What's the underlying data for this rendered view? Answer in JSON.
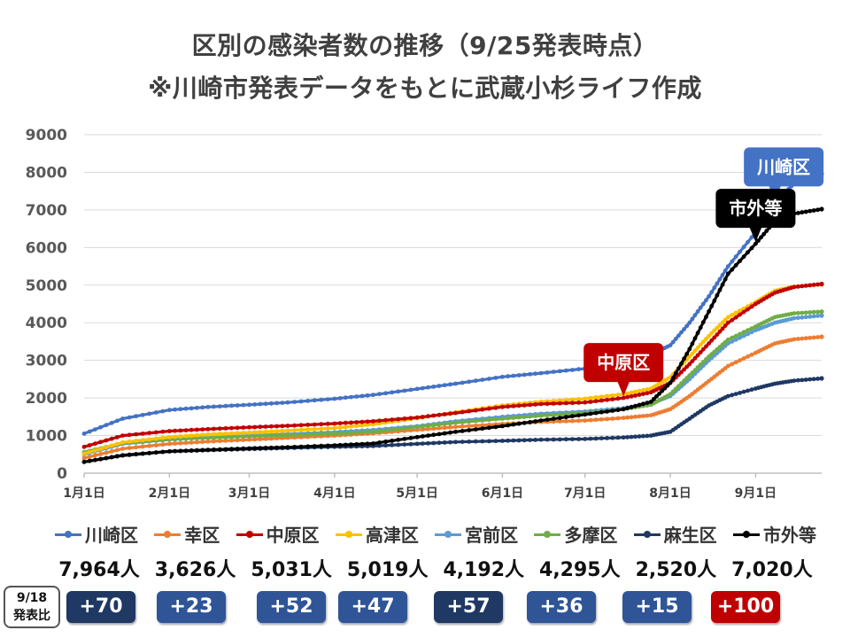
{
  "title_line1": "区別の感染者数の推移（9/25発表時点）",
  "title_line2": "※川崎市発表データをもとに武蔵小杉ライフ作成",
  "chart_data": {
    "type": "line",
    "x": [
      "1月1日",
      "1月15日",
      "2月1日",
      "2月15日",
      "3月1日",
      "3月15日",
      "4月1日",
      "4月15日",
      "5月1日",
      "5月15日",
      "6月1日",
      "6月15日",
      "7月1日",
      "7月15日",
      "7月25日",
      "8月1日",
      "8月8日",
      "8月15日",
      "8月22日",
      "9月1日",
      "9月8日",
      "9月15日",
      "9月25日"
    ],
    "x_tick_labels": [
      "1月1日",
      "2月1日",
      "3月1日",
      "4月1日",
      "5月1日",
      "6月1日",
      "7月1日",
      "8月1日",
      "9月1日"
    ],
    "ylim": [
      0,
      9000
    ],
    "y_ticks": [
      0,
      1000,
      2000,
      3000,
      4000,
      5000,
      6000,
      7000,
      8000,
      9000
    ],
    "grid": true,
    "legend_position": "bottom",
    "series": [
      {
        "name": "川崎区",
        "color": "#4472C4",
        "values": [
          1050,
          1450,
          1680,
          1760,
          1820,
          1880,
          1980,
          2080,
          2240,
          2380,
          2560,
          2660,
          2780,
          3000,
          3150,
          3400,
          4000,
          4700,
          5500,
          6400,
          7200,
          7700,
          7964
        ]
      },
      {
        "name": "幸区",
        "color": "#ED7D31",
        "values": [
          400,
          650,
          780,
          840,
          890,
          940,
          1000,
          1060,
          1150,
          1230,
          1310,
          1360,
          1400,
          1470,
          1540,
          1700,
          2050,
          2450,
          2850,
          3200,
          3450,
          3560,
          3626
        ]
      },
      {
        "name": "中原区",
        "color": "#C00000",
        "values": [
          700,
          1000,
          1120,
          1170,
          1220,
          1260,
          1320,
          1380,
          1480,
          1600,
          1760,
          1840,
          1880,
          2000,
          2150,
          2400,
          2900,
          3450,
          4000,
          4500,
          4800,
          4950,
          5031
        ]
      },
      {
        "name": "高津区",
        "color": "#FFC000",
        "values": [
          520,
          820,
          960,
          1030,
          1080,
          1130,
          1200,
          1300,
          1460,
          1620,
          1800,
          1900,
          1980,
          2100,
          2250,
          2550,
          3100,
          3650,
          4150,
          4550,
          4850,
          4960,
          5019
        ]
      },
      {
        "name": "宮前区",
        "color": "#5B9BD5",
        "values": [
          500,
          780,
          890,
          950,
          1000,
          1040,
          1090,
          1150,
          1250,
          1380,
          1500,
          1580,
          1640,
          1730,
          1850,
          2050,
          2500,
          3000,
          3450,
          3800,
          4000,
          4120,
          4192
        ]
      },
      {
        "name": "多摩区",
        "color": "#70AD47",
        "values": [
          560,
          800,
          900,
          940,
          980,
          1010,
          1050,
          1100,
          1230,
          1340,
          1450,
          1530,
          1600,
          1700,
          1820,
          2100,
          2600,
          3100,
          3550,
          3900,
          4150,
          4250,
          4295
        ]
      },
      {
        "name": "麻生区",
        "color": "#1F3864",
        "values": [
          300,
          480,
          580,
          610,
          640,
          670,
          700,
          720,
          780,
          830,
          860,
          890,
          910,
          950,
          1000,
          1100,
          1450,
          1800,
          2050,
          2250,
          2380,
          2460,
          2520
        ]
      },
      {
        "name": "市外等",
        "color": "#000000",
        "values": [
          300,
          470,
          580,
          620,
          660,
          690,
          740,
          790,
          960,
          1100,
          1250,
          1400,
          1560,
          1700,
          1900,
          2400,
          3300,
          4300,
          5300,
          6100,
          6700,
          6900,
          7020
        ]
      }
    ],
    "annotations": [
      {
        "text": "川崎区",
        "series": "川崎区",
        "at_index": 20
      },
      {
        "text": "市外等",
        "series": "市外等",
        "at_index": 19
      },
      {
        "text": "中原区",
        "series": "中原区",
        "at_index": 13
      }
    ]
  },
  "totals": [
    {
      "text": "7,964人"
    },
    {
      "text": "3,626人"
    },
    {
      "text": "5,031人"
    },
    {
      "text": "5,019人"
    },
    {
      "text": "4,192人"
    },
    {
      "text": "4,295人"
    },
    {
      "text": "2,520人"
    },
    {
      "text": "7,020人"
    }
  ],
  "compare_label_line1": "9/18",
  "compare_label_line2": "発表比",
  "diffs": [
    {
      "text": "+70",
      "color": "#1F3864"
    },
    {
      "text": "+23",
      "color": "#2F5597"
    },
    {
      "text": "+52",
      "color": "#2F5597"
    },
    {
      "text": "+47",
      "color": "#2F5597"
    },
    {
      "text": "+57",
      "color": "#1F3864"
    },
    {
      "text": "+36",
      "color": "#2F5597"
    },
    {
      "text": "+15",
      "color": "#2F5597"
    },
    {
      "text": "+100",
      "color": "#C00000"
    }
  ]
}
